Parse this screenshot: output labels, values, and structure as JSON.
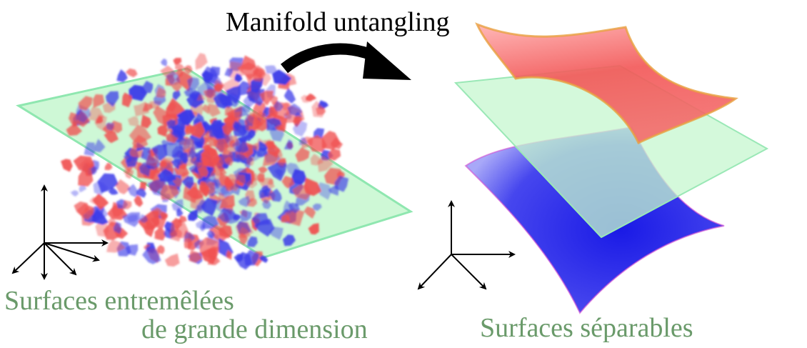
{
  "title": "Manifold untangling",
  "left_caption": {
    "line1": "Surfaces entremêlées",
    "line2": "de grande dimension"
  },
  "right_caption": "Surfaces séparables",
  "colors": {
    "red_manifold": "#f05050",
    "blue_manifold": "#3a3ae8",
    "green_plane": "#b8f5c0",
    "plane_edge": "#7fe0a0",
    "caption_text": "#6a9a6a"
  },
  "icons": {
    "arrow": "curved-arrow-icon",
    "left_axes": "axes-4d-icon",
    "right_axes": "axes-3d-icon"
  }
}
